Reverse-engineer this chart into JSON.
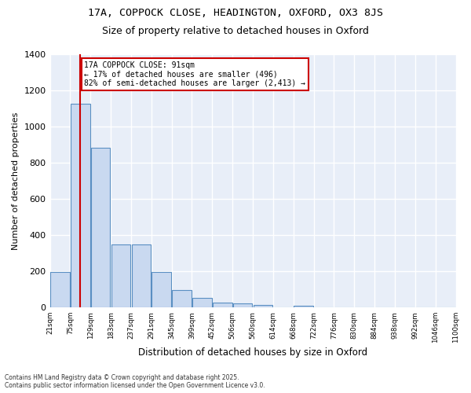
{
  "title_line1": "17A, COPPOCK CLOSE, HEADINGTON, OXFORD, OX3 8JS",
  "title_line2": "Size of property relative to detached houses in Oxford",
  "xlabel": "Distribution of detached houses by size in Oxford",
  "ylabel": "Number of detached properties",
  "bar_fill_color": "#c9d9f0",
  "bar_edge_color": "#5a8fc2",
  "bin_labels": [
    "21sqm",
    "75sqm",
    "129sqm",
    "183sqm",
    "237sqm",
    "291sqm",
    "345sqm",
    "399sqm",
    "452sqm",
    "506sqm",
    "560sqm",
    "614sqm",
    "668sqm",
    "722sqm",
    "776sqm",
    "830sqm",
    "884sqm",
    "938sqm",
    "992sqm",
    "1046sqm",
    "1100sqm"
  ],
  "values": [
    195,
    1125,
    885,
    350,
    350,
    195,
    95,
    55,
    25,
    22,
    15,
    0,
    10,
    0,
    0,
    0,
    0,
    0,
    0,
    0
  ],
  "property_line_x": 1,
  "property_line_color": "#cc0000",
  "annotation_text": "17A COPPOCK CLOSE: 91sqm\n← 17% of detached houses are smaller (496)\n82% of semi-detached houses are larger (2,413) →",
  "annotation_box_color": "#cc0000",
  "ylim": [
    0,
    1400
  ],
  "yticks": [
    0,
    200,
    400,
    600,
    800,
    1000,
    1200,
    1400
  ],
  "background_color": "#e8eef8",
  "grid_color": "#ffffff",
  "footer_line1": "Contains HM Land Registry data © Crown copyright and database right 2025.",
  "footer_line2": "Contains public sector information licensed under the Open Government Licence v3.0."
}
